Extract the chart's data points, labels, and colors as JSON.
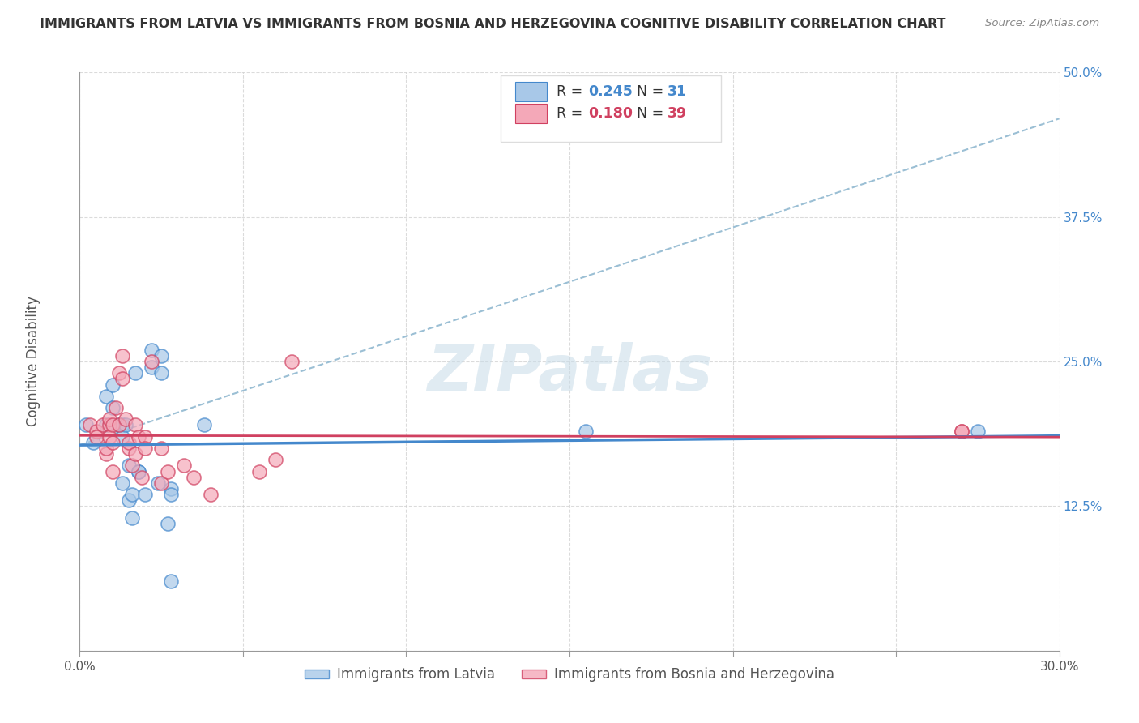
{
  "title": "IMMIGRANTS FROM LATVIA VS IMMIGRANTS FROM BOSNIA AND HERZEGOVINA COGNITIVE DISABILITY CORRELATION CHART",
  "source": "Source: ZipAtlas.com",
  "ylabel_label": "Cognitive Disability",
  "xlim": [
    0.0,
    0.3
  ],
  "ylim": [
    0.0,
    0.5
  ],
  "xticks": [
    0.0,
    0.05,
    0.1,
    0.15,
    0.2,
    0.25,
    0.3
  ],
  "yticks": [
    0.0,
    0.125,
    0.25,
    0.375,
    0.5
  ],
  "xtick_labels": [
    "0.0%",
    "",
    "",
    "",
    "",
    "",
    "30.0%"
  ],
  "ytick_labels": [
    "",
    "12.5%",
    "25.0%",
    "37.5%",
    "50.0%"
  ],
  "color_blue": "#a8c8e8",
  "color_pink": "#f4a8b8",
  "color_blue_line": "#4488cc",
  "color_pink_line": "#d04060",
  "color_dashed": "#90b8d0",
  "watermark": "ZIPatlas",
  "latvia_x": [
    0.002,
    0.004,
    0.008,
    0.008,
    0.01,
    0.01,
    0.012,
    0.013,
    0.013,
    0.013,
    0.014,
    0.015,
    0.015,
    0.016,
    0.016,
    0.017,
    0.018,
    0.018,
    0.02,
    0.022,
    0.022,
    0.024,
    0.025,
    0.025,
    0.027,
    0.028,
    0.028,
    0.028,
    0.038,
    0.155,
    0.275
  ],
  "latvia_y": [
    0.195,
    0.18,
    0.22,
    0.195,
    0.23,
    0.21,
    0.195,
    0.195,
    0.185,
    0.145,
    0.195,
    0.16,
    0.13,
    0.135,
    0.115,
    0.24,
    0.155,
    0.155,
    0.135,
    0.26,
    0.245,
    0.145,
    0.255,
    0.24,
    0.11,
    0.14,
    0.135,
    0.06,
    0.195,
    0.19,
    0.19
  ],
  "bosnia_x": [
    0.003,
    0.005,
    0.005,
    0.007,
    0.008,
    0.008,
    0.009,
    0.009,
    0.009,
    0.01,
    0.01,
    0.01,
    0.011,
    0.012,
    0.012,
    0.013,
    0.013,
    0.014,
    0.015,
    0.015,
    0.016,
    0.017,
    0.017,
    0.018,
    0.019,
    0.02,
    0.02,
    0.022,
    0.025,
    0.025,
    0.027,
    0.032,
    0.035,
    0.04,
    0.055,
    0.06,
    0.065,
    0.27,
    0.27
  ],
  "bosnia_y": [
    0.195,
    0.19,
    0.185,
    0.195,
    0.17,
    0.175,
    0.195,
    0.2,
    0.185,
    0.195,
    0.18,
    0.155,
    0.21,
    0.195,
    0.24,
    0.255,
    0.235,
    0.2,
    0.175,
    0.18,
    0.16,
    0.195,
    0.17,
    0.185,
    0.15,
    0.185,
    0.175,
    0.25,
    0.145,
    0.175,
    0.155,
    0.16,
    0.15,
    0.135,
    0.155,
    0.165,
    0.25,
    0.19,
    0.19
  ],
  "background_color": "#ffffff",
  "grid_color": "#cccccc",
  "legend_r1_text": "R = ",
  "legend_r1_val": "0.245",
  "legend_n1_text": "N = ",
  "legend_n1_val": "31",
  "legend_r2_text": "R = ",
  "legend_r2_val": "0.180",
  "legend_n2_text": "N = ",
  "legend_n2_val": "39",
  "label_latvia": "Immigrants from Latvia",
  "label_bosnia": "Immigrants from Bosnia and Herzegovina"
}
